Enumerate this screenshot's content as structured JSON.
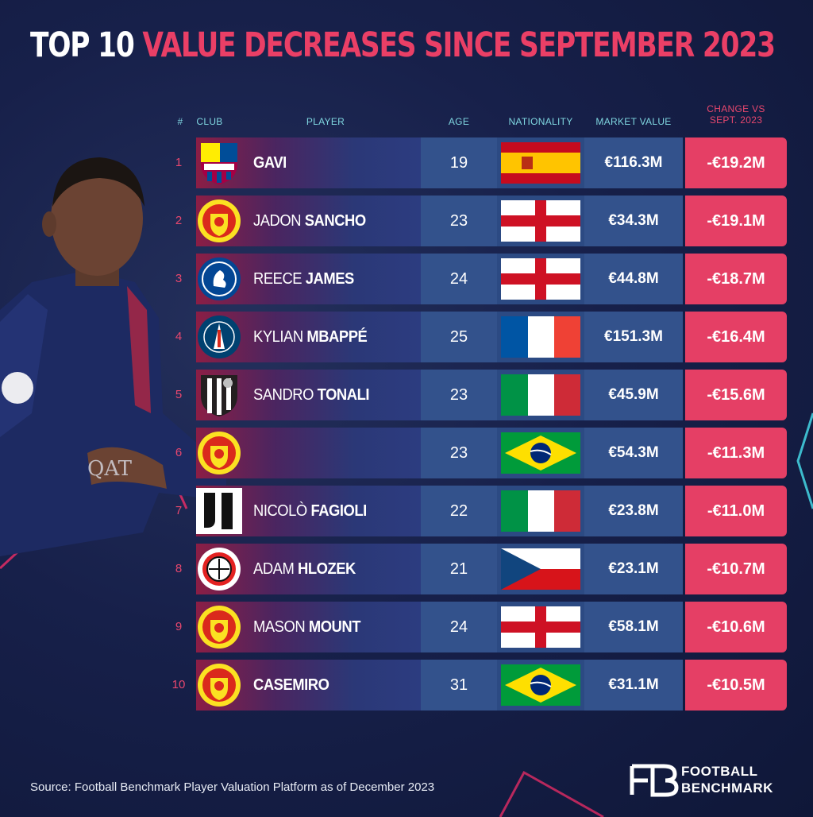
{
  "title": {
    "prefix": "TOP 10",
    "highlight": "VALUE DECREASES SINCE SEPTEMBER 2023"
  },
  "headers": {
    "rank": "#",
    "club": "CLUB",
    "player": "PLAYER",
    "age": "AGE",
    "nationality": "NATIONALITY",
    "market_value": "MARKET VALUE",
    "change_line1": "CHANGE VS",
    "change_line2": "SEPT. 2023"
  },
  "colors": {
    "accent_red": "#e53f65",
    "header_cyan": "#7fd6e0",
    "background": "#17204a"
  },
  "chart_data": {
    "type": "table",
    "columns": [
      "#",
      "CLUB",
      "PLAYER",
      "AGE",
      "NATIONALITY",
      "MARKET VALUE",
      "CHANGE VS SEPT. 2023"
    ],
    "rows": [
      {
        "rank": "1",
        "club": "fc-barcelona",
        "first": "",
        "last": "GAVI",
        "age": "19",
        "nationality": "spain",
        "market_value": "€116.3M",
        "change": "-€19.2M"
      },
      {
        "rank": "2",
        "club": "manchester-united",
        "first": "JADON",
        "last": "SANCHO",
        "age": "23",
        "nationality": "england",
        "market_value": "€34.3M",
        "change": "-€19.1M"
      },
      {
        "rank": "3",
        "club": "chelsea",
        "first": "REECE",
        "last": "JAMES",
        "age": "24",
        "nationality": "england",
        "market_value": "€44.8M",
        "change": "-€18.7M"
      },
      {
        "rank": "4",
        "club": "psg",
        "first": "KYLIAN",
        "last": "MBAPPÉ",
        "age": "25",
        "nationality": "france",
        "market_value": "€151.3M",
        "change": "-€16.4M"
      },
      {
        "rank": "5",
        "club": "newcastle",
        "first": "SANDRO",
        "last": "TONALI",
        "age": "23",
        "nationality": "italy",
        "market_value": "€45.9M",
        "change": "-€15.6M"
      },
      {
        "rank": "6",
        "club": "manchester-united",
        "first": "",
        "last": "",
        "age": "23",
        "nationality": "brazil",
        "market_value": "€54.3M",
        "change": "-€11.3M"
      },
      {
        "rank": "7",
        "club": "juventus",
        "first": "NICOLÒ",
        "last": "FAGIOLI",
        "age": "22",
        "nationality": "italy",
        "market_value": "€23.8M",
        "change": "-€11.0M"
      },
      {
        "rank": "8",
        "club": "bayer-leverkusen",
        "first": "ADAM",
        "last": "HLOZEK",
        "age": "21",
        "nationality": "czech-republic",
        "market_value": "€23.1M",
        "change": "-€10.7M"
      },
      {
        "rank": "9",
        "club": "manchester-united",
        "first": "MASON",
        "last": "MOUNT",
        "age": "24",
        "nationality": "england",
        "market_value": "€58.1M",
        "change": "-€10.6M"
      },
      {
        "rank": "10",
        "club": "manchester-united",
        "first": "",
        "last": "CASEMIRO",
        "age": "31",
        "nationality": "brazil",
        "market_value": "€31.1M",
        "change": "-€10.5M"
      }
    ]
  },
  "footer": {
    "source": "Source: Football Benchmark Player Valuation Platform as of December 2023",
    "logo_line1": "FOOTBALL",
    "logo_line2": "BENCHMARK"
  }
}
